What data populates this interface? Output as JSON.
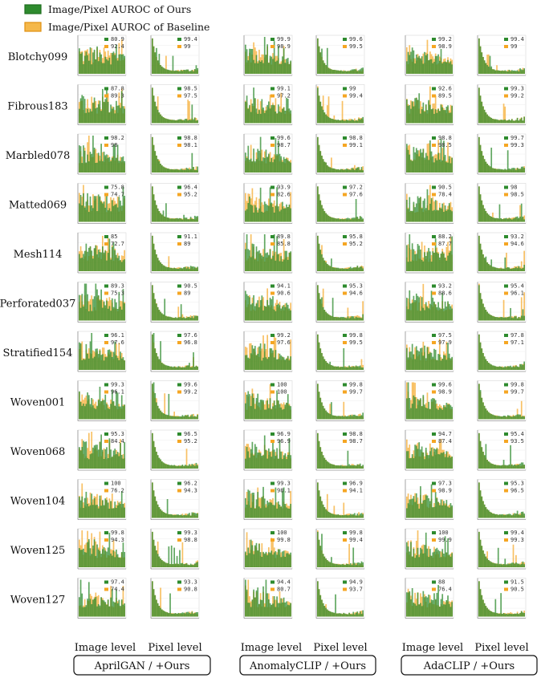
{
  "chart_data": {
    "type": "bar",
    "legend": {
      "placement": "top-left",
      "ours": "Image/Pixel  AUROC of Ours",
      "baseline": "Image/Pixel  AUROC of Baseline"
    },
    "colors": {
      "ours": "#2e8b2e",
      "ours_edge": "#1f6e1f",
      "baseline": "#f5a623",
      "baseline_edge": "#e09010"
    },
    "levels": [
      "Image level",
      "Pixel level"
    ],
    "methods": [
      "AprilGAN / +Ours",
      "AnomalyCLIP / +Ours",
      "AdaCLIP / +Ours"
    ],
    "categories": [
      "Blotchy099",
      "Fibrous183",
      "Marbled078",
      "Matted069",
      "Mesh114",
      "Perforated037",
      "Stratified154",
      "Woven001",
      "Woven068",
      "Woven104",
      "Woven125",
      "Woven127"
    ],
    "values": [
      [
        [
          [
            80.9,
            92.4
          ],
          [
            99.4,
            99.0
          ]
        ],
        [
          [
            99.9,
            98.9
          ],
          [
            99.6,
            99.5
          ]
        ],
        [
          [
            99.2,
            98.9
          ],
          [
            99.4,
            99.0
          ]
        ]
      ],
      [
        [
          [
            87.8,
            89.3
          ],
          [
            98.5,
            97.5
          ]
        ],
        [
          [
            99.1,
            97.2
          ],
          [
            99.0,
            99.4
          ]
        ],
        [
          [
            92.6,
            89.5
          ],
          [
            99.3,
            99.2
          ]
        ]
      ],
      [
        [
          [
            98.2,
            98.0
          ],
          [
            98.8,
            98.1
          ]
        ],
        [
          [
            99.6,
            98.7
          ],
          [
            98.8,
            99.1
          ]
        ],
        [
          [
            98.8,
            98.5
          ],
          [
            99.7,
            99.3
          ]
        ]
      ],
      [
        [
          [
            75.8,
            74.7
          ],
          [
            96.4,
            95.2
          ]
        ],
        [
          [
            93.9,
            82.6
          ],
          [
            97.2,
            97.6
          ]
        ],
        [
          [
            90.5,
            78.4
          ],
          [
            98.0,
            98.5
          ]
        ]
      ],
      [
        [
          [
            85.0,
            72.7
          ],
          [
            91.1,
            89.0
          ]
        ],
        [
          [
            89.8,
            85.8
          ],
          [
            95.8,
            95.2
          ]
        ],
        [
          [
            88.2,
            87.7
          ],
          [
            93.2,
            94.6
          ]
        ]
      ],
      [
        [
          [
            89.3,
            75.3
          ],
          [
            90.5,
            89.0
          ]
        ],
        [
          [
            94.1,
            90.6
          ],
          [
            95.3,
            94.6
          ]
        ],
        [
          [
            93.2,
            88.6
          ],
          [
            95.4,
            96.1
          ]
        ]
      ],
      [
        [
          [
            96.1,
            97.6
          ],
          [
            97.6,
            96.8
          ]
        ],
        [
          [
            99.2,
            97.6
          ],
          [
            99.8,
            99.5
          ]
        ],
        [
          [
            97.5,
            97.9
          ],
          [
            97.8,
            97.1
          ]
        ]
      ],
      [
        [
          [
            99.3,
            96.1
          ],
          [
            99.6,
            99.2
          ]
        ],
        [
          [
            100,
            100
          ],
          [
            99.8,
            99.7
          ]
        ],
        [
          [
            99.6,
            98.9
          ],
          [
            99.8,
            99.7
          ]
        ]
      ],
      [
        [
          [
            95.3,
            84.4
          ],
          [
            96.5,
            95.2
          ]
        ],
        [
          [
            96.9,
            96.9
          ],
          [
            98.8,
            98.7
          ]
        ],
        [
          [
            94.7,
            87.4
          ],
          [
            95.4,
            93.5
          ]
        ]
      ],
      [
        [
          [
            100,
            76.2
          ],
          [
            96.2,
            94.3
          ]
        ],
        [
          [
            99.3,
            98.1
          ],
          [
            96.9,
            94.1
          ]
        ],
        [
          [
            97.3,
            98.9
          ],
          [
            95.3,
            96.5
          ]
        ]
      ],
      [
        [
          [
            99.8,
            94.3
          ],
          [
            99.3,
            98.8
          ]
        ],
        [
          [
            100,
            99.8
          ],
          [
            99.8,
            99.4
          ]
        ],
        [
          [
            100,
            99.9
          ],
          [
            99.4,
            99.3
          ]
        ]
      ],
      [
        [
          [
            97.4,
            74.4
          ],
          [
            93.3,
            90.8
          ]
        ],
        [
          [
            94.4,
            80.7
          ],
          [
            94.9,
            93.7
          ]
        ],
        [
          [
            88.0,
            76.4
          ],
          [
            91.5,
            90.5
          ]
        ]
      ]
    ]
  }
}
